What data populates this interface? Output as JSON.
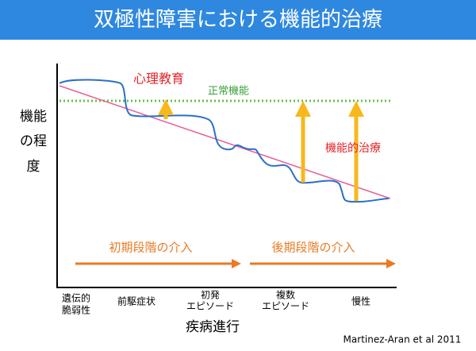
{
  "header": {
    "title": "双極性障害における機能的治療"
  },
  "y_axis_label": [
    "機能",
    "の程",
    "度"
  ],
  "x_axis_label": "疾病進行",
  "annotations": {
    "psychoeducation": "心理教育",
    "normal_function": "正常機能",
    "functional_treatment": "機能的治療",
    "early_intervention": "初期段階の介入",
    "late_intervention": "後期段階の介入"
  },
  "stages": [
    [
      "遺伝的",
      "脆弱性"
    ],
    [
      "前駆症状"
    ],
    [
      "初発",
      "エピソード"
    ],
    [
      "複数",
      "エピソード"
    ],
    [
      "慢性"
    ]
  ],
  "citation": "Martinez-Aran et al 2011"
}
